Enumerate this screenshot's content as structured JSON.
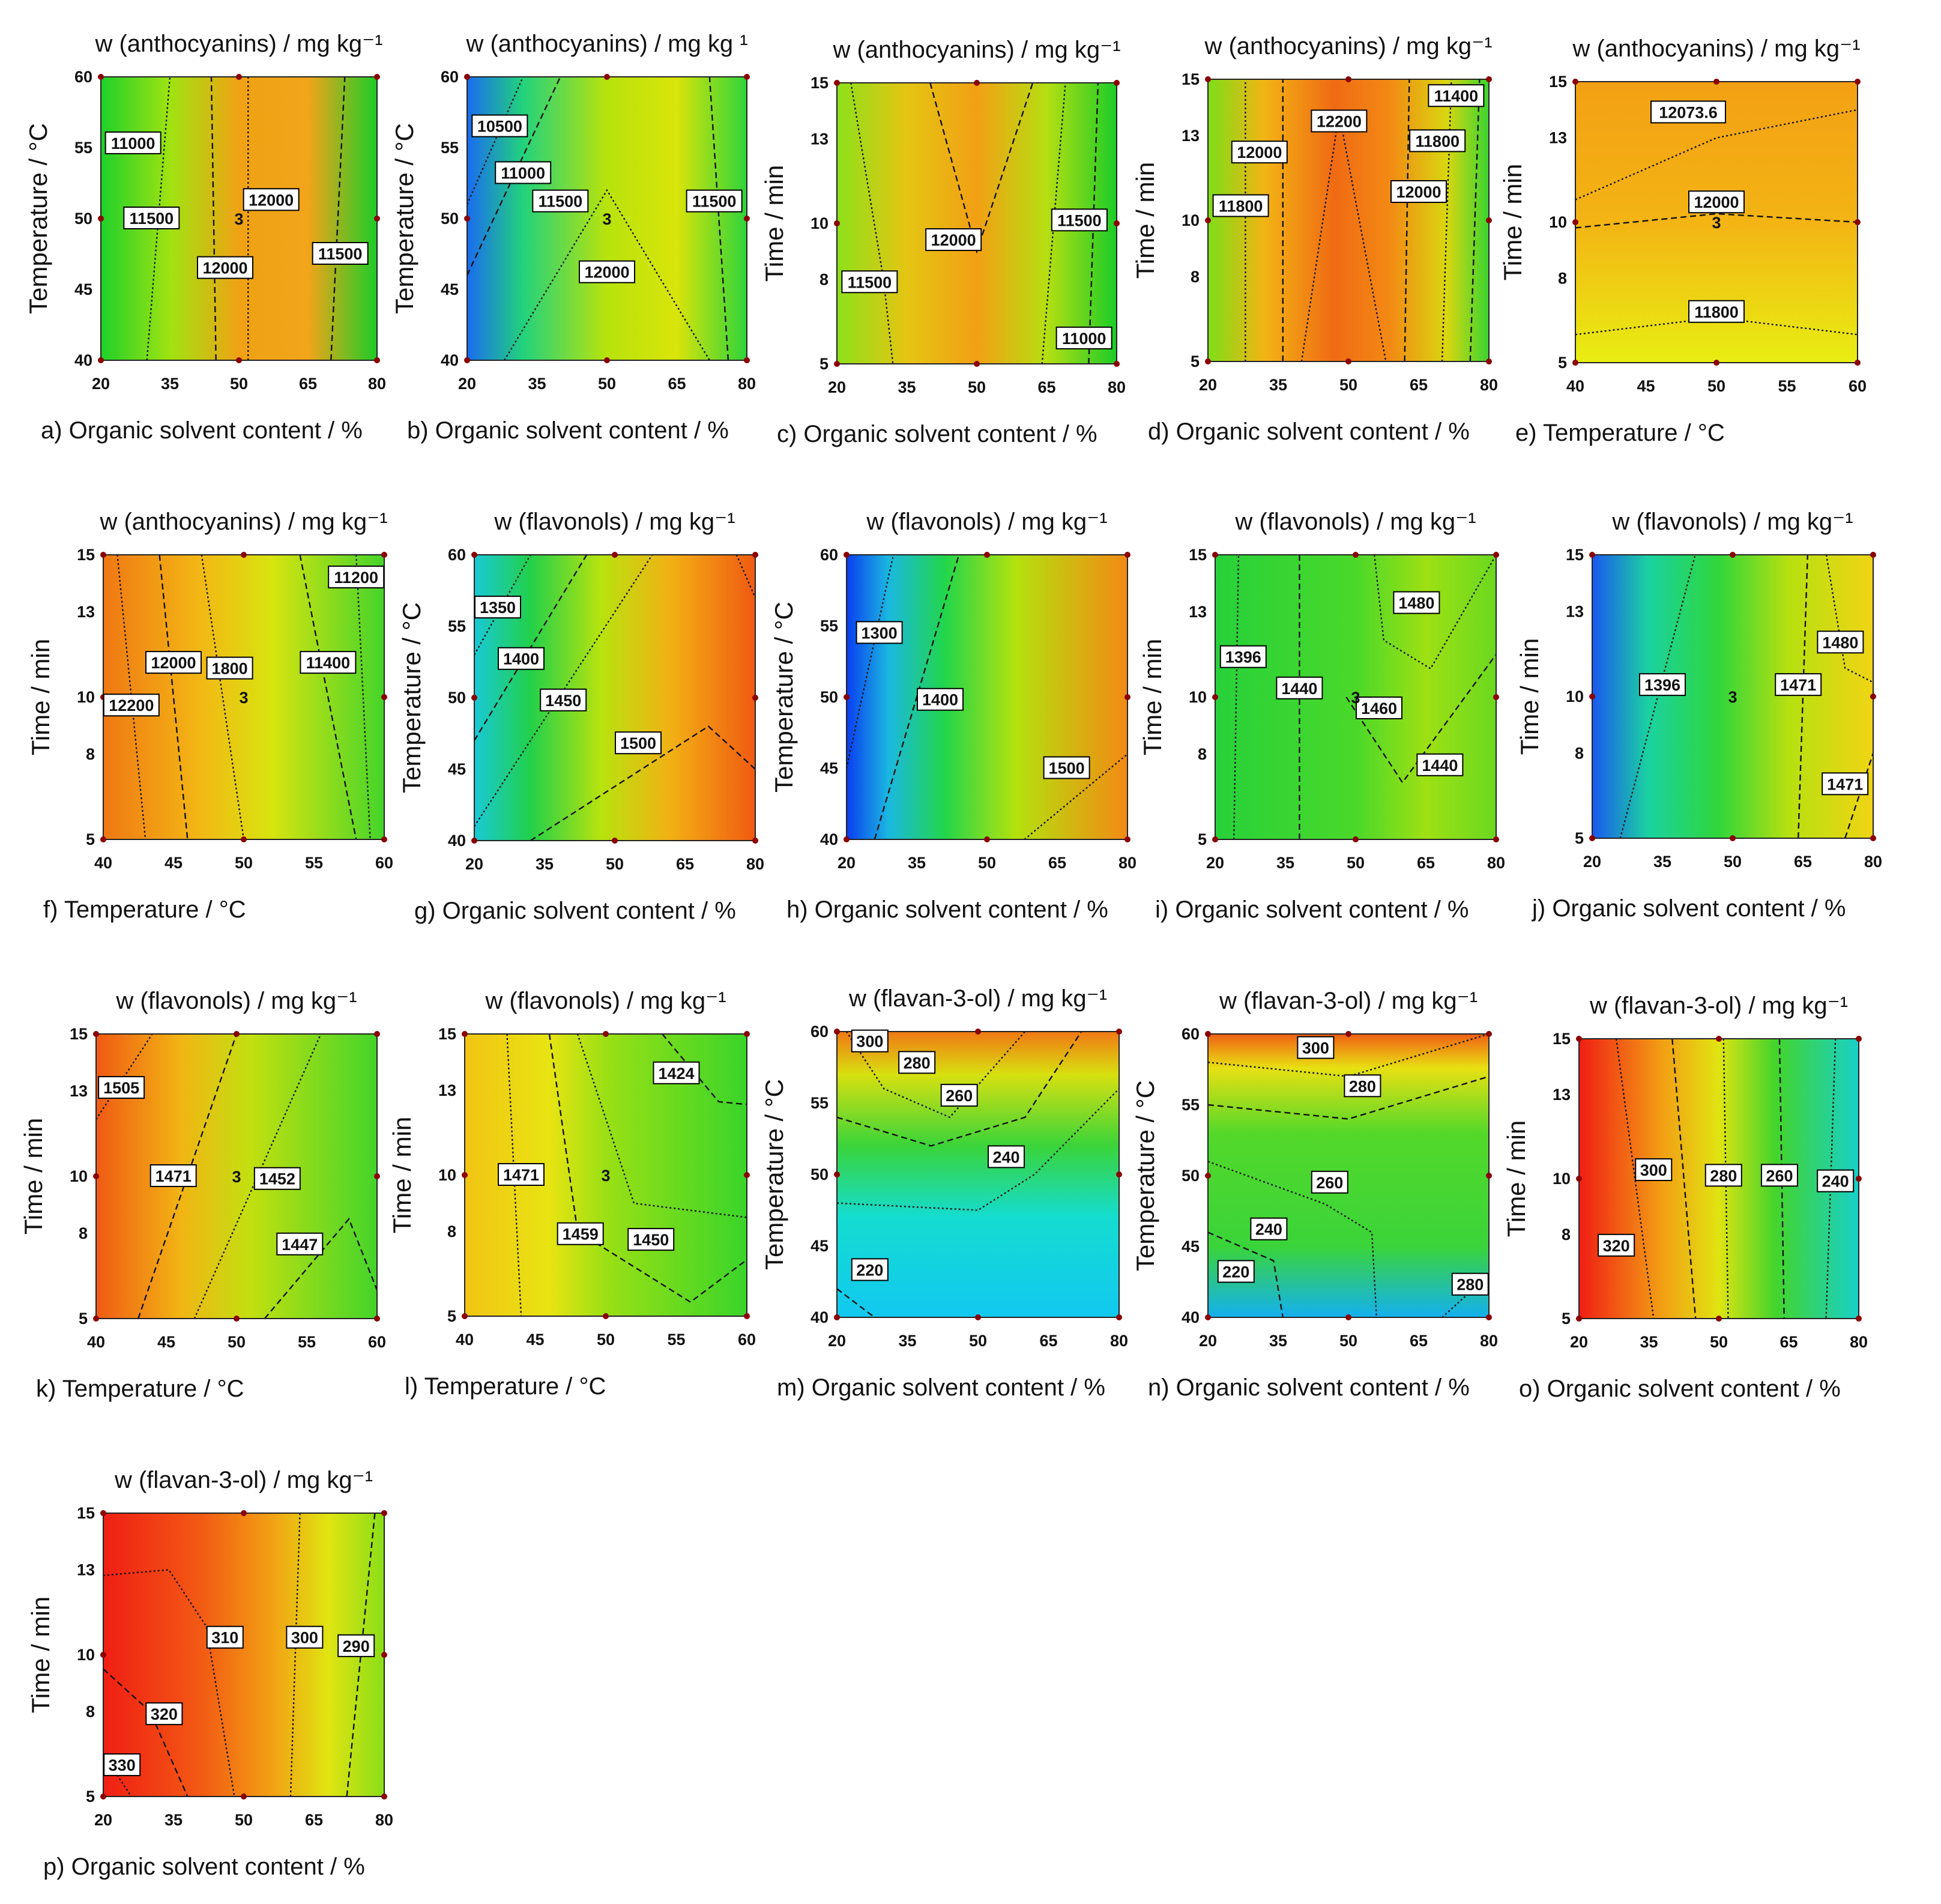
{
  "chart_data": [
    {
      "id": "a",
      "type": "heatmap",
      "title": "w (anthocyanins) / mg kg⁻¹",
      "xlabel": "a) Organic solvent content / %",
      "ylabel": "Temperature / °C",
      "xlim": [
        20,
        80
      ],
      "ylim": [
        40,
        60
      ],
      "xticks": [
        "20",
        "35",
        "50",
        "65",
        "80"
      ],
      "yticks": [
        "40",
        "45",
        "50",
        "55",
        "60"
      ],
      "contour_labels": [
        {
          "text": "11000",
          "x": 27,
          "y": 55.3
        },
        {
          "text": "11500",
          "x": 31,
          "y": 50
        },
        {
          "text": "12000",
          "x": 57,
          "y": 51.3
        },
        {
          "text": "12000",
          "x": 47,
          "y": 46.5
        },
        {
          "text": "11500",
          "x": 72,
          "y": 47.5
        },
        {
          "text": "3",
          "x": 50,
          "y": 50
        }
      ],
      "color_stops": [
        [
          0,
          "#1fd02a"
        ],
        [
          0.25,
          "#9fe311"
        ],
        [
          0.5,
          "#f0a214"
        ],
        [
          0.75,
          "#f2a41a"
        ],
        [
          1,
          "#1ccc28"
        ]
      ]
    },
    {
      "id": "b",
      "type": "heatmap",
      "title": "w (anthocyanins) / mg kg ¹",
      "xlabel": "b) Organic solvent content / %",
      "ylabel": "Temperature / °C",
      "xlim": [
        20,
        80
      ],
      "ylim": [
        40,
        60
      ],
      "xticks": [
        "20",
        "35",
        "50",
        "65",
        "80"
      ],
      "yticks": [
        "40",
        "45",
        "50",
        "55",
        "60"
      ],
      "contour_labels": [
        {
          "text": "10500",
          "x": 27,
          "y": 56.5
        },
        {
          "text": "11000",
          "x": 32,
          "y": 53.2
        },
        {
          "text": "11500",
          "x": 40,
          "y": 51.2
        },
        {
          "text": "11500",
          "x": 73,
          "y": 51.2
        },
        {
          "text": "12000",
          "x": 50,
          "y": 46.2
        },
        {
          "text": "3",
          "x": 50,
          "y": 50
        }
      ],
      "color_stops": [
        [
          0,
          "#1a6cf0"
        ],
        [
          0.2,
          "#22d27c"
        ],
        [
          0.5,
          "#b8e30c"
        ],
        [
          0.75,
          "#d9e40a"
        ],
        [
          1,
          "#2ed43a"
        ]
      ]
    },
    {
      "id": "c",
      "type": "heatmap",
      "title": "w (anthocyanins) / mg kg⁻¹",
      "xlabel": "c) Organic solvent content / %",
      "ylabel": "Time / min",
      "xlim": [
        20,
        80
      ],
      "ylim": [
        5,
        15
      ],
      "xticks": [
        "20",
        "35",
        "50",
        "65",
        "80"
      ],
      "yticks": [
        "5",
        "8",
        "10",
        "13",
        "15"
      ],
      "contour_labels": [
        {
          "text": "12000",
          "x": 45,
          "y": 9.4
        },
        {
          "text": "11500",
          "x": 27,
          "y": 7.9
        },
        {
          "text": "11500",
          "x": 72,
          "y": 10.1
        },
        {
          "text": "11000",
          "x": 73,
          "y": 5.9
        }
      ],
      "color_stops": [
        [
          0,
          "#8ee01a"
        ],
        [
          0.25,
          "#e4c513"
        ],
        [
          0.5,
          "#f2a014"
        ],
        [
          0.75,
          "#b5df12"
        ],
        [
          1,
          "#1ccc28"
        ]
      ]
    },
    {
      "id": "d",
      "type": "heatmap",
      "title": "w (anthocyanins) / mg kg⁻¹",
      "xlabel": "d) Organic solvent content / %",
      "ylabel": "Time / min",
      "xlim": [
        20,
        80
      ],
      "ylim": [
        5,
        15
      ],
      "xticks": [
        "20",
        "35",
        "50",
        "65",
        "80"
      ],
      "yticks": [
        "5",
        "8",
        "10",
        "13",
        "15"
      ],
      "contour_labels": [
        {
          "text": "12200",
          "x": 48,
          "y": 13.5
        },
        {
          "text": "11400",
          "x": 73,
          "y": 14.4
        },
        {
          "text": "12000",
          "x": 31,
          "y": 12.4
        },
        {
          "text": "11800",
          "x": 69,
          "y": 12.8
        },
        {
          "text": "12000",
          "x": 65,
          "y": 11.0
        },
        {
          "text": "11800",
          "x": 27,
          "y": 10.5
        }
      ],
      "color_stops": [
        [
          0,
          "#7ede18"
        ],
        [
          0.2,
          "#f2b414"
        ],
        [
          0.45,
          "#f06a14"
        ],
        [
          0.65,
          "#f28a14"
        ],
        [
          0.85,
          "#d9d710"
        ],
        [
          1,
          "#3ad430"
        ]
      ]
    },
    {
      "id": "e",
      "type": "heatmap",
      "title": "w (anthocyanins) / mg kg⁻¹",
      "xlabel": "e) Temperature / °C",
      "ylabel": "Time / min",
      "xlim": [
        40,
        60
      ],
      "ylim": [
        5,
        15
      ],
      "xticks": [
        "40",
        "45",
        "50",
        "55",
        "60"
      ],
      "yticks": [
        "5",
        "8",
        "10",
        "13",
        "15"
      ],
      "contour_labels": [
        {
          "text": "12073.6",
          "x": 48,
          "y": 13.9
        },
        {
          "text": "12000",
          "x": 50,
          "y": 10.7
        },
        {
          "text": "11800",
          "x": 50,
          "y": 6.8
        },
        {
          "text": "3",
          "x": 50,
          "y": 10
        }
      ],
      "color_stops": [
        [
          0,
          "#f3a014"
        ],
        [
          0.5,
          "#f3b414"
        ],
        [
          1,
          "#e8ee12"
        ]
      ],
      "direction": "vertical"
    },
    {
      "id": "f",
      "type": "heatmap",
      "title": "w (anthocyanins) / mg kg⁻¹",
      "xlabel": "f) Temperature / °C",
      "ylabel": "Time / min",
      "xlim": [
        40,
        60
      ],
      "ylim": [
        5,
        15
      ],
      "xticks": [
        "40",
        "45",
        "50",
        "55",
        "60"
      ],
      "yticks": [
        "5",
        "8",
        "10",
        "13",
        "15"
      ],
      "contour_labels": [
        {
          "text": "11200",
          "x": 58,
          "y": 14.2
        },
        {
          "text": "12000",
          "x": 45,
          "y": 11.2
        },
        {
          "text": "1800",
          "x": 49,
          "y": 11.0
        },
        {
          "text": "11400",
          "x": 56,
          "y": 11.2
        },
        {
          "text": "12200",
          "x": 42,
          "y": 9.7
        },
        {
          "text": "3",
          "x": 50,
          "y": 10
        }
      ],
      "color_stops": [
        [
          0,
          "#f07814"
        ],
        [
          0.35,
          "#f2b814"
        ],
        [
          0.6,
          "#d8e410"
        ],
        [
          1,
          "#44d42a"
        ]
      ]
    },
    {
      "id": "g",
      "type": "heatmap",
      "title": "w (flavonols) / mg kg⁻¹",
      "xlabel": "g) Organic solvent content / %",
      "ylabel": "Temperature / °C",
      "xlim": [
        20,
        80
      ],
      "ylim": [
        40,
        60
      ],
      "xticks": [
        "20",
        "35",
        "50",
        "65",
        "80"
      ],
      "yticks": [
        "40",
        "45",
        "50",
        "55",
        "60"
      ],
      "contour_labels": [
        {
          "text": "1350",
          "x": 25,
          "y": 56.3
        },
        {
          "text": "1400",
          "x": 30,
          "y": 52.7
        },
        {
          "text": "1450",
          "x": 39,
          "y": 49.8
        },
        {
          "text": "1500",
          "x": 55,
          "y": 46.8
        }
      ],
      "color_stops": [
        [
          0,
          "#19c9d6"
        ],
        [
          0.2,
          "#22d04a"
        ],
        [
          0.45,
          "#b7e30e"
        ],
        [
          0.7,
          "#f2b014"
        ],
        [
          1,
          "#f05a12"
        ]
      ]
    },
    {
      "id": "h",
      "type": "heatmap",
      "title": "w (flavonols) / mg kg⁻¹",
      "xlabel": "h) Organic solvent content / %",
      "ylabel": "Temperature / °C",
      "xlim": [
        20,
        80
      ],
      "ylim": [
        40,
        60
      ],
      "xticks": [
        "20",
        "35",
        "50",
        "65",
        "80"
      ],
      "yticks": [
        "40",
        "45",
        "50",
        "55",
        "60"
      ],
      "contour_labels": [
        {
          "text": "1300",
          "x": 27,
          "y": 54.5
        },
        {
          "text": "1400",
          "x": 40,
          "y": 49.8
        },
        {
          "text": "1500",
          "x": 67,
          "y": 45.0
        }
      ],
      "color_stops": [
        [
          0,
          "#0a3ef0"
        ],
        [
          0.15,
          "#1ab8e0"
        ],
        [
          0.35,
          "#22d64a"
        ],
        [
          0.6,
          "#b2e20e"
        ],
        [
          1,
          "#f28a14"
        ]
      ]
    },
    {
      "id": "i",
      "type": "heatmap",
      "title": "w (flavonols) / mg kg⁻¹",
      "xlabel": "i) Organic solvent content / %",
      "ylabel": "Time / min",
      "xlim": [
        20,
        80
      ],
      "ylim": [
        5,
        15
      ],
      "xticks": [
        "20",
        "35",
        "50",
        "65",
        "80"
      ],
      "yticks": [
        "5",
        "8",
        "10",
        "13",
        "15"
      ],
      "contour_labels": [
        {
          "text": "1480",
          "x": 63,
          "y": 13.3
        },
        {
          "text": "1396",
          "x": 26,
          "y": 11.4
        },
        {
          "text": "1440",
          "x": 38,
          "y": 10.3
        },
        {
          "text": "1460",
          "x": 55,
          "y": 9.6
        },
        {
          "text": "1440",
          "x": 68,
          "y": 7.6
        },
        {
          "text": "3",
          "x": 50,
          "y": 10
        }
      ],
      "color_stops": [
        [
          0,
          "#27d13a"
        ],
        [
          0.5,
          "#4ad82a"
        ],
        [
          0.75,
          "#9ee014"
        ],
        [
          1,
          "#6bd820"
        ]
      ]
    },
    {
      "id": "j",
      "type": "heatmap",
      "title": "w (flavonols) / mg kg⁻¹",
      "xlabel": "j) Organic solvent content / %",
      "ylabel": "Time / min",
      "xlim": [
        20,
        80
      ],
      "ylim": [
        5,
        15
      ],
      "xticks": [
        "20",
        "35",
        "50",
        "65",
        "80"
      ],
      "yticks": [
        "5",
        "8",
        "10",
        "13",
        "15"
      ],
      "contour_labels": [
        {
          "text": "1480",
          "x": 73,
          "y": 11.9
        },
        {
          "text": "1396",
          "x": 35,
          "y": 10.4
        },
        {
          "text": "1471",
          "x": 64,
          "y": 10.4
        },
        {
          "text": "1471",
          "x": 74,
          "y": 6.9
        },
        {
          "text": "3",
          "x": 50,
          "y": 10
        }
      ],
      "color_stops": [
        [
          0,
          "#1a58f0"
        ],
        [
          0.2,
          "#1ad2a0"
        ],
        [
          0.45,
          "#30d63a"
        ],
        [
          0.7,
          "#b7e010"
        ],
        [
          1,
          "#f0d414"
        ]
      ]
    },
    {
      "id": "k",
      "type": "heatmap",
      "title": "w (flavonols) / mg kg⁻¹",
      "xlabel": "k) Temperature / °C",
      "ylabel": "Time / min",
      "xlim": [
        40,
        60
      ],
      "ylim": [
        5,
        15
      ],
      "xticks": [
        "40",
        "45",
        "50",
        "55",
        "60"
      ],
      "yticks": [
        "5",
        "8",
        "10",
        "13",
        "15"
      ],
      "contour_labels": [
        {
          "text": "1505",
          "x": 41.8,
          "y": 13.1
        },
        {
          "text": "1471",
          "x": 45.5,
          "y": 10.0
        },
        {
          "text": "1452",
          "x": 52.9,
          "y": 9.9
        },
        {
          "text": "1447",
          "x": 54.5,
          "y": 7.6
        },
        {
          "text": "3",
          "x": 50,
          "y": 10
        }
      ],
      "color_stops": [
        [
          0,
          "#f05a14"
        ],
        [
          0.3,
          "#f2b414"
        ],
        [
          0.55,
          "#c2e010"
        ],
        [
          1,
          "#44d42a"
        ]
      ]
    },
    {
      "id": "l",
      "type": "heatmap",
      "title": "w (flavonols) / mg kg⁻¹",
      "xlabel": "l) Temperature / °C",
      "ylabel": "Time / min",
      "xlim": [
        40,
        60
      ],
      "ylim": [
        5,
        15
      ],
      "xticks": [
        "40",
        "45",
        "50",
        "55",
        "60"
      ],
      "yticks": [
        "5",
        "8",
        "10",
        "13",
        "15"
      ],
      "contour_labels": [
        {
          "text": "1424",
          "x": 55,
          "y": 13.6
        },
        {
          "text": "1471",
          "x": 44,
          "y": 10.0
        },
        {
          "text": "1459",
          "x": 48.2,
          "y": 7.9
        },
        {
          "text": "1450",
          "x": 53.2,
          "y": 7.7
        },
        {
          "text": "3",
          "x": 50,
          "y": 10
        }
      ],
      "color_stops": [
        [
          0,
          "#f2c414"
        ],
        [
          0.3,
          "#e8e412"
        ],
        [
          0.5,
          "#9ae014"
        ],
        [
          1,
          "#3ad42a"
        ]
      ]
    },
    {
      "id": "m",
      "type": "heatmap",
      "title": "w (flavan-3-ol) / mg kg⁻¹",
      "xlabel": "m) Organic solvent content / %",
      "ylabel": "Temperature / °C",
      "xlim": [
        20,
        80
      ],
      "ylim": [
        40,
        60
      ],
      "xticks": [
        "20",
        "35",
        "50",
        "65",
        "80"
      ],
      "yticks": [
        "40",
        "45",
        "50",
        "55",
        "60"
      ],
      "contour_labels": [
        {
          "text": "300",
          "x": 27,
          "y": 59.3
        },
        {
          "text": "280",
          "x": 37,
          "y": 57.8
        },
        {
          "text": "260",
          "x": 46,
          "y": 55.5
        },
        {
          "text": "240",
          "x": 56,
          "y": 51.2
        },
        {
          "text": "220",
          "x": 27,
          "y": 43.3
        }
      ],
      "color_stops": [
        [
          0,
          "#f07814"
        ],
        [
          0.15,
          "#d8e010"
        ],
        [
          0.4,
          "#3ad43a"
        ],
        [
          0.65,
          "#14dcd0"
        ],
        [
          1,
          "#12c8f0"
        ]
      ],
      "direction": "vertical"
    },
    {
      "id": "n",
      "type": "heatmap",
      "title": "w (flavan-3-ol) / mg kg⁻¹",
      "xlabel": "n) Organic solvent content / %",
      "ylabel": "Temperature / °C",
      "xlim": [
        20,
        80
      ],
      "ylim": [
        40,
        60
      ],
      "xticks": [
        "20",
        "35",
        "50",
        "65",
        "80"
      ],
      "yticks": [
        "40",
        "45",
        "50",
        "55",
        "60"
      ],
      "contour_labels": [
        {
          "text": "300",
          "x": 43,
          "y": 59.0
        },
        {
          "text": "280",
          "x": 53,
          "y": 56.3
        },
        {
          "text": "260",
          "x": 46,
          "y": 49.5
        },
        {
          "text": "240",
          "x": 33,
          "y": 46.2
        },
        {
          "text": "220",
          "x": 26,
          "y": 43.2
        },
        {
          "text": "280",
          "x": 76,
          "y": 42.3
        }
      ],
      "color_stops": [
        [
          0,
          "#f06014"
        ],
        [
          0.12,
          "#e8e012"
        ],
        [
          0.35,
          "#54d82a"
        ],
        [
          0.75,
          "#3ad43a"
        ],
        [
          1,
          "#14b0f0"
        ]
      ],
      "direction": "vertical"
    },
    {
      "id": "o",
      "type": "heatmap",
      "title": "w (flavan-3-ol) / mg kg⁻¹",
      "xlabel": "o) Organic solvent content / %",
      "ylabel": "Time / min",
      "xlim": [
        20,
        80
      ],
      "ylim": [
        5,
        15
      ],
      "xticks": [
        "20",
        "35",
        "50",
        "65",
        "80"
      ],
      "yticks": [
        "5",
        "8",
        "10",
        "13",
        "15"
      ],
      "contour_labels": [
        {
          "text": "300",
          "x": 36,
          "y": 10.3
        },
        {
          "text": "280",
          "x": 51,
          "y": 10.1
        },
        {
          "text": "260",
          "x": 63,
          "y": 10.1
        },
        {
          "text": "240",
          "x": 75,
          "y": 9.9
        },
        {
          "text": "320",
          "x": 28,
          "y": 7.6
        }
      ],
      "color_stops": [
        [
          0,
          "#f01e14"
        ],
        [
          0.3,
          "#f2a014"
        ],
        [
          0.5,
          "#e0e412"
        ],
        [
          0.7,
          "#44d42a"
        ],
        [
          1,
          "#18d0c8"
        ]
      ]
    },
    {
      "id": "p",
      "type": "heatmap",
      "title": "w (flavan-3-ol) / mg kg⁻¹",
      "xlabel": "p) Organic solvent content / %",
      "ylabel": "Time / min",
      "xlim": [
        20,
        80
      ],
      "ylim": [
        5,
        15
      ],
      "xticks": [
        "20",
        "35",
        "50",
        "65",
        "80"
      ],
      "yticks": [
        "5",
        "8",
        "10",
        "13",
        "15"
      ],
      "contour_labels": [
        {
          "text": "310",
          "x": 46,
          "y": 10.6
        },
        {
          "text": "300",
          "x": 63,
          "y": 10.6
        },
        {
          "text": "290",
          "x": 74,
          "y": 10.3
        },
        {
          "text": "320",
          "x": 33,
          "y": 7.9
        },
        {
          "text": "330",
          "x": 24,
          "y": 6.1
        }
      ],
      "color_stops": [
        [
          0,
          "#f01e14"
        ],
        [
          0.35,
          "#f25a14"
        ],
        [
          0.6,
          "#f2a014"
        ],
        [
          0.8,
          "#e0e412"
        ],
        [
          1,
          "#8ade18"
        ]
      ]
    }
  ]
}
